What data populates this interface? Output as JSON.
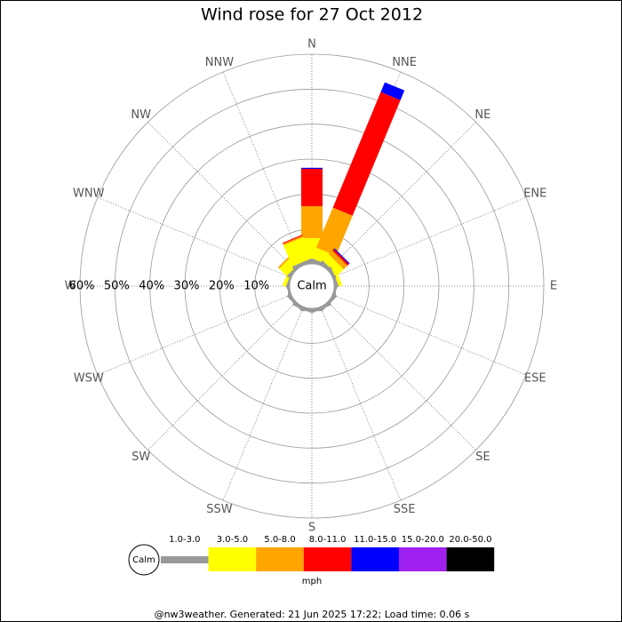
{
  "chart_data": {
    "type": "windrose",
    "title": "Wind rose for 27 Oct 2012",
    "directions": [
      "N",
      "NNE",
      "NE",
      "ENE",
      "E",
      "ESE",
      "SE",
      "SSE",
      "S",
      "SSW",
      "SW",
      "WSW",
      "W",
      "WNW",
      "NW",
      "NNW"
    ],
    "center_label": "Calm",
    "rlim": [
      0,
      60
    ],
    "rticks": [
      {
        "value": 10,
        "label": "10%"
      },
      {
        "value": 20,
        "label": "20%"
      },
      {
        "value": 30,
        "label": "30%"
      },
      {
        "value": 40,
        "label": "40%"
      },
      {
        "value": 50,
        "label": "50%"
      },
      {
        "value": 60,
        "label": "60%"
      }
    ],
    "series": [
      {
        "name": "1.0-3.0",
        "color": "#999999",
        "values": [
          1,
          1,
          1,
          0.8,
          0.5,
          0.5,
          0.8,
          0.8,
          0.8,
          0.8,
          0.8,
          0.5,
          0.5,
          0.5,
          0.8,
          1
        ]
      },
      {
        "name": "3.0-5.0",
        "color": "#ffff00",
        "values": [
          6.4,
          3.3,
          2.5,
          1,
          0,
          0,
          0,
          0,
          0,
          0,
          0,
          0,
          0,
          1,
          3,
          6.5
        ]
      },
      {
        "name": "5.0-8.0",
        "color": "#ffa500",
        "values": [
          9.1,
          12.4,
          1.5,
          0,
          0,
          0,
          0,
          0,
          0,
          0,
          0,
          0,
          0,
          0,
          0.5,
          0.5
        ]
      },
      {
        "name": "8.0-11.0",
        "color": "#ff0000",
        "values": [
          10.7,
          35.8,
          0.6,
          0,
          0,
          0,
          0,
          0,
          0,
          0,
          0,
          0,
          0,
          0,
          0,
          0.3
        ]
      },
      {
        "name": "11.0-15.0",
        "color": "#0000ff",
        "values": [
          0.3,
          3,
          0.3,
          0,
          0,
          0,
          0,
          0,
          0,
          0,
          0,
          0,
          0,
          0,
          0,
          0
        ]
      },
      {
        "name": "15.0-20.0",
        "color": "#a020f0",
        "values": [
          0,
          0,
          0,
          0,
          0,
          0,
          0,
          0,
          0,
          0,
          0,
          0,
          0,
          0,
          0,
          0
        ]
      },
      {
        "name": "20.0-50.0",
        "color": "#000000",
        "values": [
          0,
          0,
          0,
          0,
          0,
          0,
          0,
          0,
          0,
          0,
          0,
          0,
          0,
          0,
          0,
          0
        ]
      }
    ],
    "legend_title": "mph",
    "footer": "@nw3weather. Generated: 21 Jun 2025 17:22; Load time: 0.06 s"
  }
}
